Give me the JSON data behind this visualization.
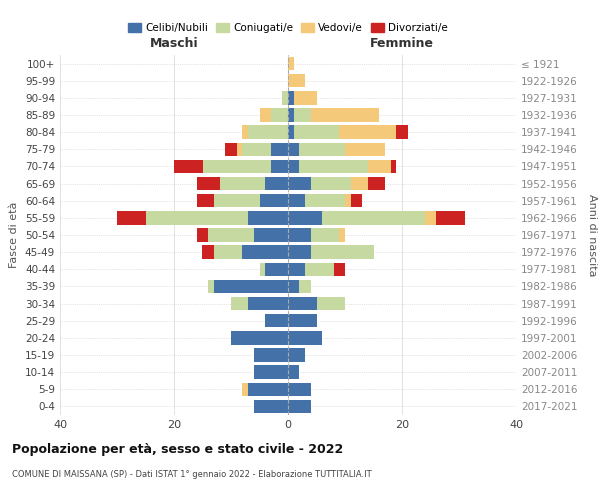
{
  "age_groups": [
    "0-4",
    "5-9",
    "10-14",
    "15-19",
    "20-24",
    "25-29",
    "30-34",
    "35-39",
    "40-44",
    "45-49",
    "50-54",
    "55-59",
    "60-64",
    "65-69",
    "70-74",
    "75-79",
    "80-84",
    "85-89",
    "90-94",
    "95-99",
    "100+"
  ],
  "birth_years": [
    "2017-2021",
    "2012-2016",
    "2007-2011",
    "2002-2006",
    "1997-2001",
    "1992-1996",
    "1987-1991",
    "1982-1986",
    "1977-1981",
    "1972-1976",
    "1967-1971",
    "1962-1966",
    "1957-1961",
    "1952-1956",
    "1947-1951",
    "1942-1946",
    "1937-1941",
    "1932-1936",
    "1927-1931",
    "1922-1926",
    "≤ 1921"
  ],
  "maschi": {
    "celibi": [
      6,
      7,
      6,
      6,
      10,
      4,
      7,
      13,
      4,
      8,
      6,
      7,
      5,
      4,
      3,
      3,
      0,
      0,
      0,
      0,
      0
    ],
    "coniugati": [
      0,
      0,
      0,
      0,
      0,
      0,
      3,
      1,
      1,
      5,
      8,
      18,
      8,
      8,
      12,
      5,
      7,
      3,
      1,
      0,
      0
    ],
    "vedovi": [
      0,
      1,
      0,
      0,
      0,
      0,
      0,
      0,
      0,
      0,
      0,
      0,
      0,
      0,
      0,
      1,
      1,
      2,
      0,
      0,
      0
    ],
    "divorziati": [
      0,
      0,
      0,
      0,
      0,
      0,
      0,
      0,
      0,
      2,
      2,
      5,
      3,
      4,
      5,
      2,
      0,
      0,
      0,
      0,
      0
    ]
  },
  "femmine": {
    "nubili": [
      4,
      4,
      2,
      3,
      6,
      5,
      5,
      2,
      3,
      4,
      4,
      6,
      3,
      4,
      2,
      2,
      1,
      1,
      1,
      0,
      0
    ],
    "coniugate": [
      0,
      0,
      0,
      0,
      0,
      0,
      5,
      2,
      5,
      11,
      5,
      18,
      7,
      7,
      12,
      8,
      8,
      3,
      0,
      0,
      0
    ],
    "vedove": [
      0,
      0,
      0,
      0,
      0,
      0,
      0,
      0,
      0,
      0,
      1,
      2,
      1,
      3,
      4,
      7,
      10,
      12,
      4,
      3,
      1
    ],
    "divorziate": [
      0,
      0,
      0,
      0,
      0,
      0,
      0,
      0,
      2,
      0,
      0,
      5,
      2,
      3,
      1,
      0,
      2,
      0,
      0,
      0,
      0
    ]
  },
  "colors": {
    "celibi": "#4472a8",
    "coniugati": "#c5d9a0",
    "vedovi": "#f5c97a",
    "divorziati": "#cc2222"
  },
  "xlim": 40,
  "title": "Popolazione per età, sesso e stato civile - 2022",
  "subtitle": "COMUNE DI MAISSANA (SP) - Dati ISTAT 1° gennaio 2022 - Elaborazione TUTTITALIA.IT",
  "ylabel_left": "Fasce di età",
  "ylabel_right": "Anni di nascita",
  "xlabel_left": "Maschi",
  "xlabel_right": "Femmine"
}
